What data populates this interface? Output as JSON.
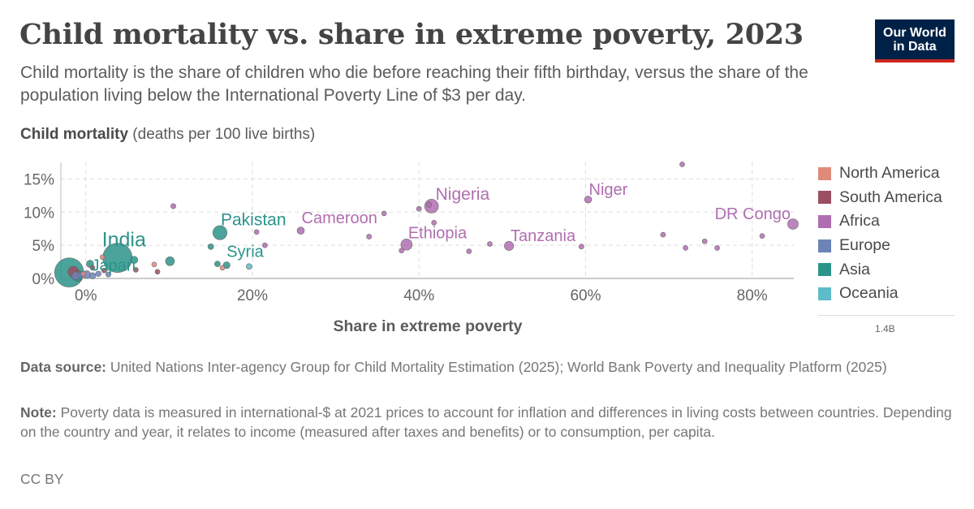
{
  "header": {
    "title": "Child mortality vs. share in extreme poverty, 2023",
    "subtitle": "Child mortality is the share of children who die before reaching their fifth birthday, versus the share of the population living below the International Poverty Line of $3 per day."
  },
  "logo": {
    "line1": "Our World",
    "line2": "in Data"
  },
  "footer": {
    "source_label": "Data source:",
    "source_text": "United Nations Inter-agency Group for Child Mortality Estimation (2025); World Bank Poverty and Inequality Platform (2025)",
    "note_label": "Note:",
    "note_text": "Poverty data is measured in international-$ at 2021 prices to account for inflation and differences in living costs between countries. Depending on the country and year, it relates to income (measured after taxes and benefits) or to consumption, per capita.",
    "license": "CC BY"
  },
  "size_legend": {
    "label": "1.4B"
  },
  "chart_data": {
    "type": "scatter",
    "ylabel_bold": "Child mortality",
    "ylabel_unit": "(deaths per 100 live births)",
    "xlabel": "Share in extreme poverty",
    "xlim": [
      -3,
      85
    ],
    "ylim": [
      0,
      17.5
    ],
    "xticks": [
      {
        "value": 0,
        "label": "0%"
      },
      {
        "value": 20,
        "label": "20%"
      },
      {
        "value": 40,
        "label": "40%"
      },
      {
        "value": 60,
        "label": "60%"
      },
      {
        "value": 80,
        "label": "80%"
      }
    ],
    "yticks": [
      {
        "value": 0,
        "label": "0%"
      },
      {
        "value": 5,
        "label": "5%"
      },
      {
        "value": 10,
        "label": "10%"
      },
      {
        "value": 15,
        "label": "15%"
      }
    ],
    "grid": true,
    "legend_position": "right",
    "size_encoding": "population",
    "series": [
      {
        "name": "North America",
        "color": "#e08a7c",
        "points": [
          {
            "x": -0.3,
            "y": 0.7,
            "pop": 5
          },
          {
            "x": 2.0,
            "y": 3.2,
            "pop": 1
          },
          {
            "x": 8.2,
            "y": 2.1,
            "pop": 2
          },
          {
            "x": 16.4,
            "y": 1.6,
            "pop": 1
          }
        ]
      },
      {
        "name": "South America",
        "color": "#9a4f62",
        "points": [
          {
            "x": -1.5,
            "y": 1.0,
            "pop": 120
          },
          {
            "x": 0.8,
            "y": 1.6,
            "pop": 3
          },
          {
            "x": 2.2,
            "y": 1.2,
            "pop": 4
          },
          {
            "x": 6.0,
            "y": 1.3,
            "pop": 2
          },
          {
            "x": 8.6,
            "y": 1.0,
            "pop": 2
          }
        ]
      },
      {
        "name": "Africa",
        "color": "#b06eb0",
        "points": [
          {
            "x": 10.5,
            "y": 10.9,
            "pop": 5
          },
          {
            "x": 20.5,
            "y": 7.0,
            "pop": 3
          },
          {
            "x": 21.5,
            "y": 5.0,
            "pop": 3
          },
          {
            "x": 25.8,
            "y": 7.2,
            "pop": 29,
            "label": "Cameroon"
          },
          {
            "x": 34.0,
            "y": 6.3,
            "pop": 4
          },
          {
            "x": 35.8,
            "y": 9.8,
            "pop": 3
          },
          {
            "x": 37.9,
            "y": 4.2,
            "pop": 2
          },
          {
            "x": 38.5,
            "y": 5.1,
            "pop": 126,
            "label": "Ethiopia"
          },
          {
            "x": 40.0,
            "y": 10.5,
            "pop": 4
          },
          {
            "x": 41.2,
            "y": 11.1,
            "pop": 6
          },
          {
            "x": 41.5,
            "y": 10.9,
            "pop": 227,
            "label": "Nigeria"
          },
          {
            "x": 41.8,
            "y": 8.4,
            "pop": 3
          },
          {
            "x": 46.0,
            "y": 4.1,
            "pop": 3
          },
          {
            "x": 48.5,
            "y": 5.2,
            "pop": 3
          },
          {
            "x": 50.8,
            "y": 4.9,
            "pop": 67,
            "label": "Tanzania"
          },
          {
            "x": 59.5,
            "y": 4.8,
            "pop": 4
          },
          {
            "x": 60.3,
            "y": 11.9,
            "pop": 27,
            "label": "Niger"
          },
          {
            "x": 69.3,
            "y": 6.6,
            "pop": 3
          },
          {
            "x": 71.6,
            "y": 17.2,
            "pop": 3
          },
          {
            "x": 72.0,
            "y": 4.6,
            "pop": 3
          },
          {
            "x": 74.3,
            "y": 5.6,
            "pop": 3
          },
          {
            "x": 75.8,
            "y": 4.6,
            "pop": 3
          },
          {
            "x": 81.2,
            "y": 6.4,
            "pop": 3
          },
          {
            "x": 84.9,
            "y": 8.2,
            "pop": 105,
            "label": "DR Congo"
          }
        ]
      },
      {
        "name": "Europe",
        "color": "#6d83b8",
        "points": [
          {
            "x": -1.2,
            "y": 0.4,
            "pop": 45
          },
          {
            "x": -0.6,
            "y": 0.5,
            "pop": 10
          },
          {
            "x": 0.1,
            "y": 0.6,
            "pop": 40
          },
          {
            "x": 0.8,
            "y": 0.4,
            "pop": 15
          },
          {
            "x": 1.5,
            "y": 0.7,
            "pop": 8
          },
          {
            "x": 2.7,
            "y": 0.6,
            "pop": 5
          }
        ]
      },
      {
        "name": "Asia",
        "color": "#2b948a",
        "points": [
          {
            "x": -2.0,
            "y": 0.9,
            "pop": 1410
          },
          {
            "x": -1.0,
            "y": 0.4,
            "pop": 124,
            "label": "Japan"
          },
          {
            "x": 0.5,
            "y": 2.2,
            "pop": 30
          },
          {
            "x": 3.8,
            "y": 3.1,
            "pop": 1430,
            "label": "India"
          },
          {
            "x": 5.8,
            "y": 2.8,
            "pop": 30
          },
          {
            "x": 10.1,
            "y": 2.6,
            "pop": 60
          },
          {
            "x": 15.0,
            "y": 4.8,
            "pop": 10
          },
          {
            "x": 15.8,
            "y": 2.2,
            "pop": 10
          },
          {
            "x": 16.1,
            "y": 6.9,
            "pop": 240,
            "label": "Pakistan"
          },
          {
            "x": 16.9,
            "y": 2.0,
            "pop": 23,
            "label": "Syria"
          }
        ]
      },
      {
        "name": "Oceania",
        "color": "#5cbcc8",
        "points": [
          {
            "x": 19.6,
            "y": 1.8,
            "pop": 10
          }
        ]
      }
    ]
  }
}
